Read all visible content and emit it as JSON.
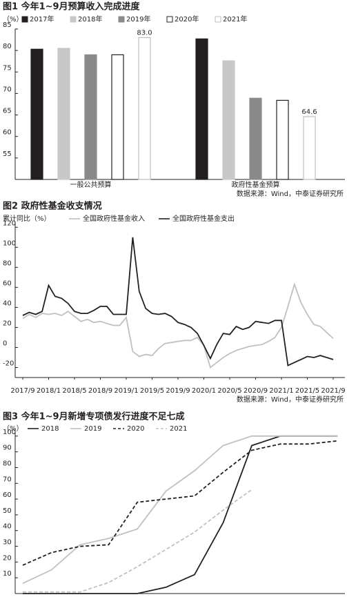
{
  "chart_data": [
    {
      "type": "bar",
      "title": "图1  今年1~9月预算收入完成进度",
      "ylabel": "（%）",
      "categories": [
        "一般公共预算",
        "政府性基金预算"
      ],
      "series": [
        {
          "name": "2017年",
          "color": "#231f20",
          "edgecolor": "#231f20",
          "values": [
            80.3,
            82.7
          ]
        },
        {
          "name": "2018年",
          "color": "#c8c8c8",
          "edgecolor": "#c8c8c8",
          "values": [
            80.5,
            77.6
          ]
        },
        {
          "name": "2019年",
          "color": "#8a8a8a",
          "edgecolor": "#8a8a8a",
          "values": [
            79.0,
            68.9
          ]
        },
        {
          "name": "2020年",
          "color": "#ffffff",
          "edgecolor": "#231f20",
          "values": [
            79.0,
            68.4
          ]
        },
        {
          "name": "2021年",
          "color": "#ffffff",
          "edgecolor": "#bdbdbd",
          "values": [
            83.0,
            64.6
          ],
          "value_labels": [
            "83.0",
            "64.6"
          ]
        }
      ],
      "ylim": [
        50,
        85
      ],
      "yticks": [
        55,
        60,
        65,
        70,
        75,
        80,
        85
      ],
      "grid": false,
      "source": "数据来源：Wind，中泰证券研究所"
    },
    {
      "type": "line",
      "title": "图2  政府性基金收支情况",
      "ylabel": "累计同比（%）",
      "categories": [
        "2017/9",
        null,
        null,
        null,
        "2018/1",
        null,
        null,
        null,
        "2018/5",
        null,
        null,
        null,
        "2018/9",
        null,
        null,
        null,
        "2019/1",
        null,
        null,
        null,
        "2019/5",
        null,
        null,
        null,
        "2019/9",
        null,
        null,
        null,
        "2020/1",
        null,
        null,
        null,
        "2020/5",
        null,
        null,
        null,
        "2020/9",
        null,
        null,
        null,
        "2021/1",
        null,
        null,
        null,
        "2021/5",
        null,
        null,
        null,
        "2021/9"
      ],
      "series": [
        {
          "name": "全国政府性基金收入",
          "color": "#c0c0c0",
          "values": [
            29,
            33,
            30,
            34,
            33,
            34,
            32,
            36,
            31,
            26,
            28,
            25,
            26,
            24,
            22,
            22,
            30,
            -4,
            -9,
            -7,
            -8,
            -1,
            4,
            5,
            6,
            7,
            7,
            10,
            2,
            -20,
            -15,
            -10,
            -6,
            -3,
            -1,
            1,
            2,
            3,
            6,
            10,
            20,
            41,
            63,
            45,
            33,
            23,
            21,
            15,
            9
          ]
        },
        {
          "name": "全国政府性基金支出",
          "color": "#231f20",
          "values": [
            32,
            35,
            33,
            36,
            62,
            51,
            49,
            44,
            36,
            34,
            34,
            37,
            41,
            41,
            33,
            33,
            33,
            110,
            56,
            39,
            34,
            33,
            34,
            31,
            25,
            23,
            20,
            14,
            2,
            -11,
            3,
            14,
            13,
            21,
            18,
            20,
            26,
            25,
            24,
            27,
            27,
            -18,
            -15,
            -12,
            -9,
            -10,
            -8,
            -10,
            -12
          ]
        }
      ],
      "ylim": [
        -30,
        125
      ],
      "yticks": [
        -20,
        0,
        20,
        40,
        60,
        80,
        100,
        120
      ],
      "grid": false,
      "source": "数据来源：Wind，中泰证券研究所"
    },
    {
      "type": "line",
      "title": "图3  今年1~9月新增专项债发行进度不足七成",
      "ylabel": "（%）",
      "categories": [
        null,
        null,
        null,
        null,
        null,
        null,
        null,
        null,
        null,
        null,
        null,
        null
      ],
      "series": [
        {
          "name": "2018",
          "color": "#231f20",
          "linestyle": "solid",
          "values": [
            0,
            0,
            0,
            0,
            0,
            4,
            12,
            45,
            94,
            100,
            100,
            100
          ]
        },
        {
          "name": "2019",
          "color": "#c0c0c0",
          "linestyle": "solid",
          "values": [
            6.5,
            15,
            31,
            35,
            41,
            65,
            78,
            94,
            100,
            100,
            100,
            100
          ]
        },
        {
          "name": "2020",
          "color": "#231f20",
          "linestyle": "dashed",
          "values": [
            18,
            26,
            30,
            31,
            58,
            60,
            62,
            77,
            91,
            95,
            95,
            97
          ]
        },
        {
          "name": "2021",
          "color": "#c0c0c0",
          "linestyle": "dashed",
          "values": [
            1,
            1,
            1,
            7,
            17,
            28,
            39,
            53,
            66,
            null,
            null,
            null
          ]
        }
      ],
      "ylim": [
        0,
        103
      ],
      "yticks": [
        10,
        20,
        30,
        40,
        50,
        60,
        70,
        80,
        90,
        100
      ],
      "grid": false
    }
  ]
}
